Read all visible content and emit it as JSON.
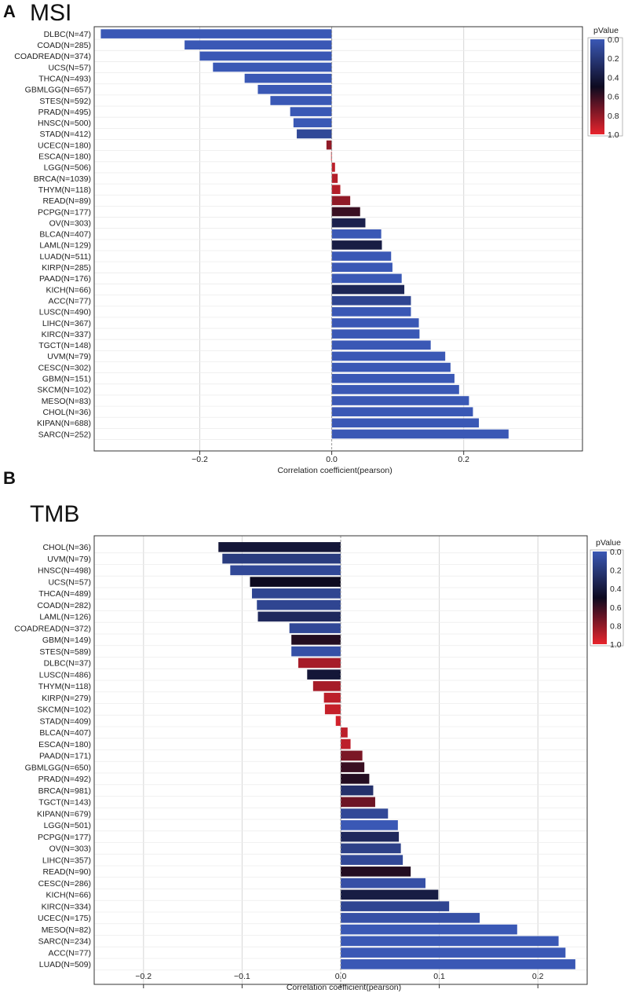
{
  "colors": {
    "p_low": "#3a58b5",
    "p_mid": "#0d0a20",
    "p_high": "#e8242c"
  },
  "chart_data": [
    {
      "type": "bar",
      "orientation": "horizontal",
      "panel": "A",
      "title": "MSI",
      "xlabel": "Correlation coefficient(pearson)",
      "xlim": [
        -0.36,
        0.38
      ],
      "xticks": [
        -0.2,
        0,
        0.2
      ],
      "xtick_labels": [
        "−0.2",
        "0.0",
        "0.2"
      ],
      "legend": {
        "title": "pValue",
        "ticks": [
          "0.0",
          "0.2",
          "0.4",
          "0.6",
          "0.8",
          "1.0"
        ],
        "placement": "right"
      },
      "categories": [
        "DLBC(N=47)",
        "COAD(N=285)",
        "COADREAD(N=374)",
        "UCS(N=57)",
        "THCA(N=493)",
        "GBMLGG(N=657)",
        "STES(N=592)",
        "PRAD(N=495)",
        "HNSC(N=500)",
        "STAD(N=412)",
        "UCEC(N=180)",
        "ESCA(N=180)",
        "LGG(N=506)",
        "BRCA(N=1039)",
        "THYM(N=118)",
        "READ(N=89)",
        "PCPG(N=177)",
        "OV(N=303)",
        "BLCA(N=407)",
        "LAML(N=129)",
        "LUAD(N=511)",
        "KIRP(N=285)",
        "PAAD(N=176)",
        "KICH(N=66)",
        "ACC(N=77)",
        "LUSC(N=490)",
        "LIHC(N=367)",
        "KIRC(N=337)",
        "TGCT(N=148)",
        "UVM(N=79)",
        "CESC(N=302)",
        "GBM(N=151)",
        "SKCM(N=102)",
        "MESO(N=83)",
        "CHOL(N=36)",
        "KIPAN(N=688)",
        "SARC(N=252)"
      ],
      "values": [
        -0.35,
        -0.223,
        -0.2,
        -0.18,
        -0.132,
        -0.112,
        -0.093,
        -0.063,
        -0.058,
        -0.053,
        -0.008,
        -0.001,
        0.005,
        0.009,
        0.013,
        0.028,
        0.043,
        0.051,
        0.075,
        0.076,
        0.09,
        0.092,
        0.106,
        0.11,
        0.12,
        0.12,
        0.132,
        0.133,
        0.15,
        0.172,
        0.18,
        0.186,
        0.193,
        0.208,
        0.214,
        0.223,
        0.268
      ],
      "pvalues": [
        0.0,
        0.0,
        0.0,
        0.0,
        0.0,
        0.0,
        0.0,
        0.0,
        0.0,
        0.1,
        0.8,
        0.95,
        0.9,
        0.88,
        0.88,
        0.8,
        0.6,
        0.35,
        0.0,
        0.38,
        0.0,
        0.0,
        0.0,
        0.32,
        0.12,
        0.0,
        0.0,
        0.0,
        0.0,
        0.0,
        0.0,
        0.0,
        0.0,
        0.0,
        0.0,
        0.0,
        0.0
      ]
    },
    {
      "type": "bar",
      "orientation": "horizontal",
      "panel": "B",
      "title": "TMB",
      "xlabel": "Correlation coefficient(pearson)",
      "xlim": [
        -0.25,
        0.25
      ],
      "xticks": [
        -0.2,
        -0.1,
        0,
        0.1,
        0.2
      ],
      "xtick_labels": [
        "−0.2",
        "−0.1",
        "0.0",
        "0.1",
        "0.2"
      ],
      "legend": {
        "title": "pValue",
        "ticks": [
          "0.0",
          "0.2",
          "0.4",
          "0.6",
          "0.8",
          "1.0"
        ],
        "placement": "right"
      },
      "categories": [
        "CHOL(N=36)",
        "UVM(N=79)",
        "HNSC(N=498)",
        "UCS(N=57)",
        "THCA(N=489)",
        "COAD(N=282)",
        "LAML(N=126)",
        "COADREAD(N=372)",
        "GBM(N=149)",
        "STES(N=589)",
        "DLBC(N=37)",
        "LUSC(N=486)",
        "THYM(N=118)",
        "KIRP(N=279)",
        "SKCM(N=102)",
        "STAD(N=409)",
        "BLCA(N=407)",
        "ESCA(N=180)",
        "PAAD(N=171)",
        "GBMLGG(N=650)",
        "PRAD(N=492)",
        "BRCA(N=981)",
        "TGCT(N=143)",
        "KIPAN(N=679)",
        "LGG(N=501)",
        "PCPG(N=177)",
        "OV(N=303)",
        "LIHC(N=357)",
        "READ(N=90)",
        "CESC(N=286)",
        "KICH(N=66)",
        "KIRC(N=334)",
        "UCEC(N=175)",
        "MESO(N=82)",
        "SARC(N=234)",
        "ACC(N=77)",
        "LUAD(N=509)"
      ],
      "values": [
        -0.124,
        -0.12,
        -0.112,
        -0.092,
        -0.09,
        -0.085,
        -0.084,
        -0.052,
        -0.05,
        -0.05,
        -0.043,
        -0.034,
        -0.028,
        -0.017,
        -0.016,
        -0.005,
        0.007,
        0.01,
        0.022,
        0.024,
        0.029,
        0.033,
        0.035,
        0.048,
        0.058,
        0.059,
        0.061,
        0.063,
        0.071,
        0.086,
        0.099,
        0.11,
        0.141,
        0.179,
        0.221,
        0.228,
        0.238
      ],
      "pvalues": [
        0.42,
        0.18,
        0.1,
        0.5,
        0.12,
        0.12,
        0.3,
        0.1,
        0.55,
        0.05,
        0.85,
        0.42,
        0.85,
        0.9,
        0.92,
        0.95,
        0.9,
        0.9,
        0.75,
        0.6,
        0.55,
        0.25,
        0.72,
        0.1,
        0.0,
        0.3,
        0.15,
        0.1,
        0.55,
        0.05,
        0.38,
        0.12,
        0.05,
        0.0,
        0.0,
        0.0,
        0.0
      ]
    }
  ]
}
